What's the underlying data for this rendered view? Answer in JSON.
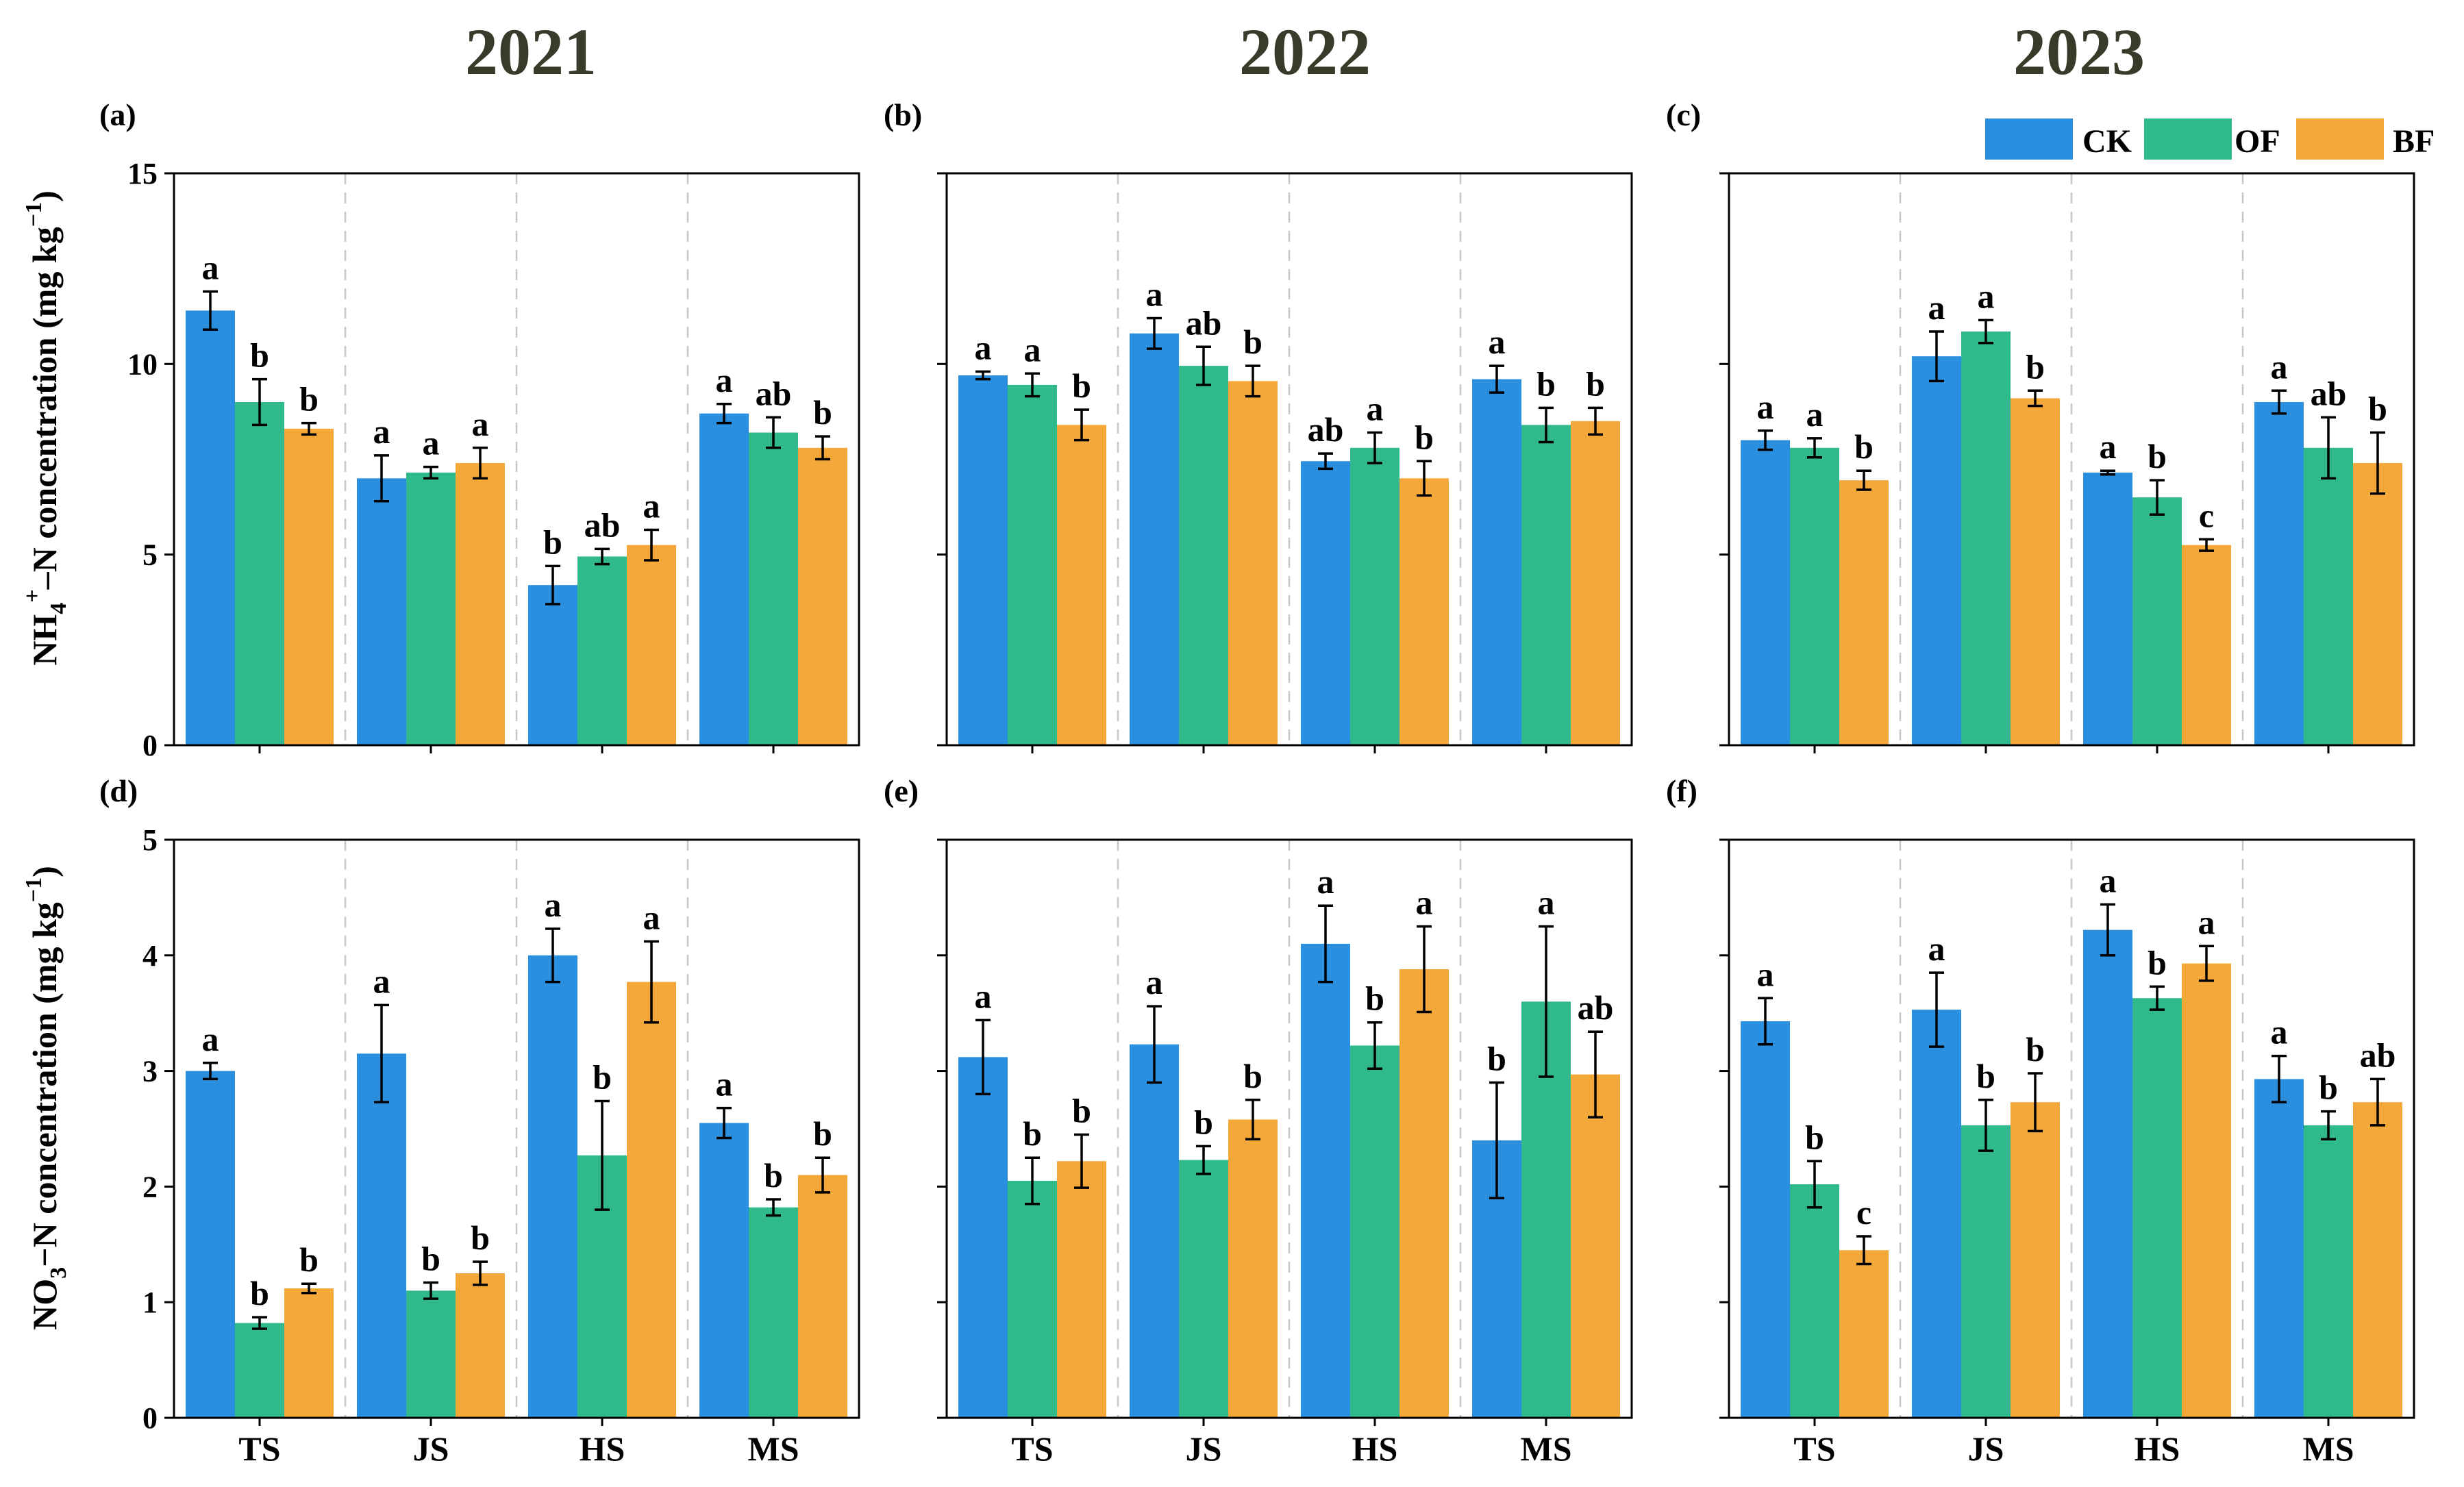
{
  "legend": [
    {
      "name": "CK",
      "color": "#2b8fe0"
    },
    {
      "name": "OF",
      "color": "#2fb98c"
    },
    {
      "name": "BF",
      "color": "#f5a83a"
    }
  ],
  "years": [
    "2021",
    "2022",
    "2023"
  ],
  "ylabels": {
    "nh4": {
      "pre": "NH",
      "sub": "4",
      "sup": "+",
      "post": "–N concentration (mg kg",
      "sup2": "−1",
      "end": ")"
    },
    "no3": {
      "pre": "NO",
      "sub": "3",
      "sup": "",
      "post": "−N concentration (mg kg",
      "sup2": "−1",
      "end": ")"
    }
  },
  "chart_data": [
    {
      "type": "bar",
      "panel": "(a)",
      "year": "2021",
      "row": "nh4",
      "categories": [
        "TS",
        "JS",
        "HS",
        "MS"
      ],
      "ylim": [
        0,
        15
      ],
      "yticks": [
        0,
        5,
        10,
        15
      ],
      "series": [
        {
          "name": "CK",
          "values": [
            11.4,
            7.0,
            4.2,
            8.7
          ],
          "errors": [
            0.5,
            0.6,
            0.5,
            0.25
          ],
          "letters": [
            "a",
            "a",
            "b",
            "a"
          ]
        },
        {
          "name": "OF",
          "values": [
            9.0,
            7.15,
            4.95,
            8.2
          ],
          "errors": [
            0.6,
            0.15,
            0.2,
            0.4
          ],
          "letters": [
            "b",
            "a",
            "ab",
            "ab"
          ]
        },
        {
          "name": "BF",
          "values": [
            8.3,
            7.4,
            5.25,
            7.8
          ],
          "errors": [
            0.15,
            0.4,
            0.4,
            0.3
          ],
          "letters": [
            "b",
            "a",
            "a",
            "b"
          ]
        }
      ]
    },
    {
      "type": "bar",
      "panel": "(b)",
      "year": "2022",
      "row": "nh4",
      "categories": [
        "TS",
        "JS",
        "HS",
        "MS"
      ],
      "ylim": [
        0,
        15
      ],
      "yticks": [
        0,
        5,
        10,
        15
      ],
      "series": [
        {
          "name": "CK",
          "values": [
            9.7,
            10.8,
            7.45,
            9.6
          ],
          "errors": [
            0.1,
            0.4,
            0.2,
            0.35
          ],
          "letters": [
            "a",
            "a",
            "ab",
            "a"
          ]
        },
        {
          "name": "OF",
          "values": [
            9.45,
            9.95,
            7.8,
            8.4
          ],
          "errors": [
            0.3,
            0.5,
            0.4,
            0.45
          ],
          "letters": [
            "a",
            "ab",
            "a",
            "b"
          ]
        },
        {
          "name": "BF",
          "values": [
            8.4,
            9.55,
            7.0,
            8.5
          ],
          "errors": [
            0.4,
            0.4,
            0.45,
            0.35
          ],
          "letters": [
            "b",
            "b",
            "b",
            "b"
          ]
        }
      ]
    },
    {
      "type": "bar",
      "panel": "(c)",
      "year": "2023",
      "row": "nh4",
      "categories": [
        "TS",
        "JS",
        "HS",
        "MS"
      ],
      "ylim": [
        0,
        15
      ],
      "yticks": [
        0,
        5,
        10,
        15
      ],
      "series": [
        {
          "name": "CK",
          "values": [
            8.0,
            10.2,
            7.15,
            9.0
          ],
          "errors": [
            0.25,
            0.65,
            0.05,
            0.3
          ],
          "letters": [
            "a",
            "a",
            "a",
            "a"
          ]
        },
        {
          "name": "OF",
          "values": [
            7.8,
            10.85,
            6.5,
            7.8
          ],
          "errors": [
            0.25,
            0.3,
            0.45,
            0.8
          ],
          "letters": [
            "a",
            "a",
            "b",
            "ab"
          ]
        },
        {
          "name": "BF",
          "values": [
            6.95,
            9.1,
            5.25,
            7.4
          ],
          "errors": [
            0.25,
            0.2,
            0.15,
            0.8
          ],
          "letters": [
            "b",
            "b",
            "c",
            "b"
          ]
        }
      ]
    },
    {
      "type": "bar",
      "panel": "(d)",
      "year": "2021",
      "row": "no3",
      "categories": [
        "TS",
        "JS",
        "HS",
        "MS"
      ],
      "ylim": [
        0,
        5
      ],
      "yticks": [
        0,
        1,
        2,
        3,
        4,
        5
      ],
      "series": [
        {
          "name": "CK",
          "values": [
            3.0,
            3.15,
            4.0,
            2.55
          ],
          "errors": [
            0.07,
            0.42,
            0.23,
            0.13
          ],
          "letters": [
            "a",
            "a",
            "a",
            "a"
          ]
        },
        {
          "name": "OF",
          "values": [
            0.82,
            1.1,
            2.27,
            1.82
          ],
          "errors": [
            0.05,
            0.07,
            0.47,
            0.07
          ],
          "letters": [
            "b",
            "b",
            "b",
            "b"
          ]
        },
        {
          "name": "BF",
          "values": [
            1.12,
            1.25,
            3.77,
            2.1
          ],
          "errors": [
            0.04,
            0.1,
            0.35,
            0.15
          ],
          "letters": [
            "b",
            "b",
            "a",
            "b"
          ]
        }
      ]
    },
    {
      "type": "bar",
      "panel": "(e)",
      "year": "2022",
      "row": "no3",
      "categories": [
        "TS",
        "JS",
        "HS",
        "MS"
      ],
      "ylim": [
        0,
        5
      ],
      "yticks": [
        0,
        1,
        2,
        3,
        4,
        5
      ],
      "series": [
        {
          "name": "CK",
          "values": [
            3.12,
            3.23,
            4.1,
            2.4
          ],
          "errors": [
            0.32,
            0.33,
            0.33,
            0.5
          ],
          "letters": [
            "a",
            "a",
            "a",
            "b"
          ]
        },
        {
          "name": "OF",
          "values": [
            2.05,
            2.23,
            3.22,
            3.6
          ],
          "errors": [
            0.2,
            0.12,
            0.2,
            0.65
          ],
          "letters": [
            "b",
            "b",
            "b",
            "a"
          ]
        },
        {
          "name": "BF",
          "values": [
            2.22,
            2.58,
            3.88,
            2.97
          ],
          "errors": [
            0.23,
            0.17,
            0.37,
            0.37
          ],
          "letters": [
            "b",
            "b",
            "a",
            "ab"
          ]
        }
      ]
    },
    {
      "type": "bar",
      "panel": "(f)",
      "year": "2023",
      "row": "no3",
      "categories": [
        "TS",
        "JS",
        "HS",
        "MS"
      ],
      "ylim": [
        0,
        5
      ],
      "yticks": [
        0,
        1,
        2,
        3,
        4,
        5
      ],
      "series": [
        {
          "name": "CK",
          "values": [
            3.43,
            3.53,
            4.22,
            2.93
          ],
          "errors": [
            0.2,
            0.32,
            0.22,
            0.2
          ],
          "letters": [
            "a",
            "a",
            "a",
            "a"
          ]
        },
        {
          "name": "OF",
          "values": [
            2.02,
            2.53,
            3.63,
            2.53
          ],
          "errors": [
            0.2,
            0.22,
            0.1,
            0.12
          ],
          "letters": [
            "b",
            "b",
            "b",
            "b"
          ]
        },
        {
          "name": "BF",
          "values": [
            1.45,
            2.73,
            3.93,
            2.73
          ],
          "errors": [
            0.12,
            0.25,
            0.15,
            0.2
          ],
          "letters": [
            "c",
            "b",
            "a",
            "ab"
          ]
        }
      ]
    }
  ]
}
